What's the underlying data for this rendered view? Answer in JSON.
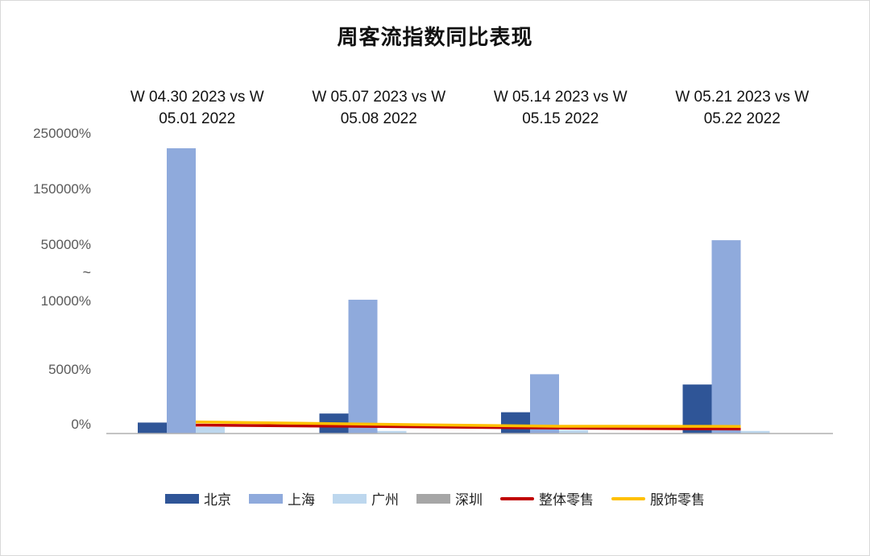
{
  "chart_data": {
    "type": "bar",
    "title": "周客流指数同比表现",
    "categories": [
      [
        "W 04.30 2023  vs W",
        "05.01 2022"
      ],
      [
        "W 05.07 2023  vs W",
        "05.08 2022"
      ],
      [
        "W 05.14 2023  vs W",
        "05.15 2022"
      ],
      [
        "W 05.21 2023  vs W",
        "05.22 2022"
      ]
    ],
    "y_axis": {
      "broken": true,
      "tick_labels": [
        "0%",
        "5000%",
        "10000%",
        "~",
        "50000%",
        "150000%",
        "250000%"
      ],
      "break_symbol": "~"
    },
    "series": [
      {
        "name": "北京",
        "kind": "bar",
        "color": "#2F5597",
        "values": [
          850,
          1550,
          1650,
          3800
        ]
      },
      {
        "name": "上海",
        "kind": "bar",
        "color": "#8FAADC",
        "values": [
          220000,
          10600,
          4600,
          57000
        ]
      },
      {
        "name": "广州",
        "kind": "bar",
        "color": "#BDD7EE",
        "values": [
          500,
          200,
          250,
          200
        ]
      },
      {
        "name": "深圳",
        "kind": "bar",
        "color": "#A6A6A6",
        "values": [
          0,
          0,
          0,
          0
        ]
      },
      {
        "name": "整体零售",
        "kind": "line",
        "color": "#C00000",
        "values": [
          650,
          550,
          420,
          350
        ]
      },
      {
        "name": "服饰零售",
        "kind": "line",
        "color": "#FFC000",
        "values": [
          900,
          720,
          560,
          550
        ]
      }
    ],
    "legend_position": "bottom",
    "grid": false
  }
}
